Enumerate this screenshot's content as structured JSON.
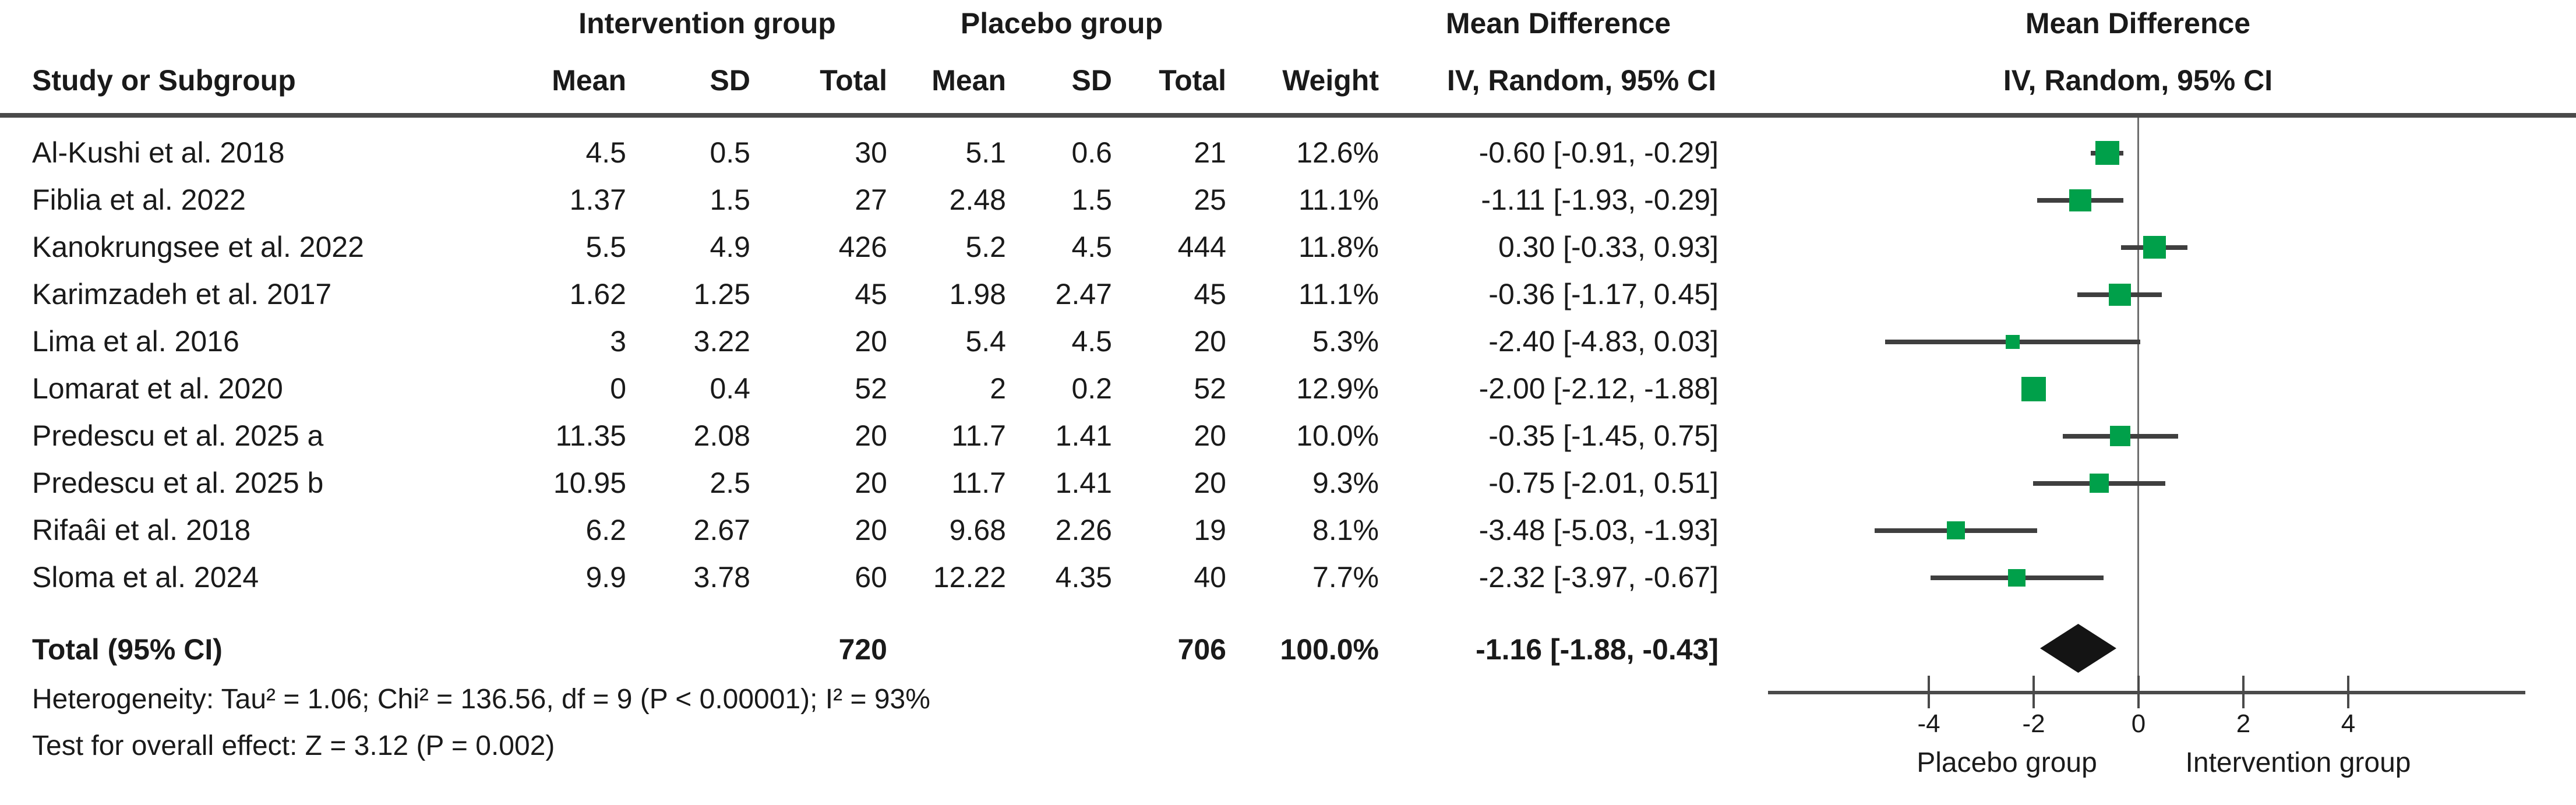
{
  "table": {
    "headers": {
      "intervention_group": "Intervention group",
      "placebo_group": "Placebo group",
      "mean_difference_left": "Mean Difference",
      "mean_difference_right": "Mean Difference",
      "study_or_subgroup": "Study or Subgroup",
      "mean1": "Mean",
      "sd1": "SD",
      "total1": "Total",
      "mean2": "Mean",
      "sd2": "SD",
      "total2": "Total",
      "weight": "Weight",
      "iv_random_left": "IV, Random, 95% CI",
      "iv_random_right": "IV, Random, 95% CI"
    },
    "rows": [
      {
        "study": "Al-Kushi et al. 2018",
        "i_mean": "4.5",
        "i_sd": "0.5",
        "i_total": "30",
        "p_mean": "5.1",
        "p_sd": "0.6",
        "p_total": "21",
        "weight": "12.6%",
        "ci": "-0.60 [-0.91, -0.29]"
      },
      {
        "study": "Fiblia et al. 2022",
        "i_mean": "1.37",
        "i_sd": "1.5",
        "i_total": "27",
        "p_mean": "2.48",
        "p_sd": "1.5",
        "p_total": "25",
        "weight": "11.1%",
        "ci": "-1.11 [-1.93, -0.29]"
      },
      {
        "study": "Kanokrungsee et al. 2022",
        "i_mean": "5.5",
        "i_sd": "4.9",
        "i_total": "426",
        "p_mean": "5.2",
        "p_sd": "4.5",
        "p_total": "444",
        "weight": "11.8%",
        "ci": "0.30 [-0.33, 0.93]"
      },
      {
        "study": "Karimzadeh et al. 2017",
        "i_mean": "1.62",
        "i_sd": "1.25",
        "i_total": "45",
        "p_mean": "1.98",
        "p_sd": "2.47",
        "p_total": "45",
        "weight": "11.1%",
        "ci": "-0.36 [-1.17, 0.45]"
      },
      {
        "study": "Lima et al. 2016",
        "i_mean": "3",
        "i_sd": "3.22",
        "i_total": "20",
        "p_mean": "5.4",
        "p_sd": "4.5",
        "p_total": "20",
        "weight": "5.3%",
        "ci": "-2.40 [-4.83, 0.03]"
      },
      {
        "study": "Lomarat et al. 2020",
        "i_mean": "0",
        "i_sd": "0.4",
        "i_total": "52",
        "p_mean": "2",
        "p_sd": "0.2",
        "p_total": "52",
        "weight": "12.9%",
        "ci": "-2.00 [-2.12, -1.88]"
      },
      {
        "study": "Predescu et al. 2025 a",
        "i_mean": "11.35",
        "i_sd": "2.08",
        "i_total": "20",
        "p_mean": "11.7",
        "p_sd": "1.41",
        "p_total": "20",
        "weight": "10.0%",
        "ci": "-0.35 [-1.45, 0.75]"
      },
      {
        "study": "Predescu et al. 2025 b",
        "i_mean": "10.95",
        "i_sd": "2.5",
        "i_total": "20",
        "p_mean": "11.7",
        "p_sd": "1.41",
        "p_total": "20",
        "weight": "9.3%",
        "ci": "-0.75 [-2.01, 0.51]"
      },
      {
        "study": "Rifaâi et al. 2018",
        "i_mean": "6.2",
        "i_sd": "2.67",
        "i_total": "20",
        "p_mean": "9.68",
        "p_sd": "2.26",
        "p_total": "19",
        "weight": "8.1%",
        "ci": "-3.48 [-5.03, -1.93]"
      },
      {
        "study": "Sloma et al. 2024",
        "i_mean": "9.9",
        "i_sd": "3.78",
        "i_total": "60",
        "p_mean": "12.22",
        "p_sd": "4.35",
        "p_total": "40",
        "weight": "7.7%",
        "ci": "-2.32 [-3.97, -0.67]"
      }
    ],
    "total_row": {
      "label": "Total (95% CI)",
      "i_total": "720",
      "p_total": "706",
      "weight": "100.0%",
      "ci": "-1.16 [-1.88, -0.43]"
    },
    "footnotes": {
      "heterogeneity": "Heterogeneity: Tau² = 1.06; Chi² = 136.56, df = 9 (P < 0.00001); I² = 93%",
      "overall_effect": "Test for overall effect: Z = 3.12 (P = 0.002)"
    }
  },
  "chart_data": {
    "type": "forest",
    "title": "Mean Difference — IV, Random, 95% CI",
    "effect_measure": "Mean Difference",
    "model": "IV, Random, 95% CI",
    "x_ticks": [
      -4,
      -2,
      0,
      2,
      4
    ],
    "xlim_drawn": [
      -7.0,
      7.4
    ],
    "x_axis_left_label": "Placebo group",
    "x_axis_right_label": "Intervention group",
    "studies": [
      {
        "name": "Al-Kushi et al. 2018",
        "md": -0.6,
        "lo": -0.91,
        "hi": -0.29,
        "weight_pct": 12.6
      },
      {
        "name": "Fiblia et al. 2022",
        "md": -1.11,
        "lo": -1.93,
        "hi": -0.29,
        "weight_pct": 11.1
      },
      {
        "name": "Kanokrungsee et al. 2022",
        "md": 0.3,
        "lo": -0.33,
        "hi": 0.93,
        "weight_pct": 11.8
      },
      {
        "name": "Karimzadeh et al. 2017",
        "md": -0.36,
        "lo": -1.17,
        "hi": 0.45,
        "weight_pct": 11.1
      },
      {
        "name": "Lima et al. 2016",
        "md": -2.4,
        "lo": -4.83,
        "hi": 0.03,
        "weight_pct": 5.3
      },
      {
        "name": "Lomarat et al. 2020",
        "md": -2.0,
        "lo": -2.12,
        "hi": -1.88,
        "weight_pct": 12.9
      },
      {
        "name": "Predescu et al. 2025 a",
        "md": -0.35,
        "lo": -1.45,
        "hi": 0.75,
        "weight_pct": 10.0
      },
      {
        "name": "Predescu et al. 2025 b",
        "md": -0.75,
        "lo": -2.01,
        "hi": 0.51,
        "weight_pct": 9.3
      },
      {
        "name": "Rifaâi et al. 2018",
        "md": -3.48,
        "lo": -5.03,
        "hi": -1.93,
        "weight_pct": 8.1
      },
      {
        "name": "Sloma et al. 2024",
        "md": -2.32,
        "lo": -3.97,
        "hi": -0.67,
        "weight_pct": 7.7
      }
    ],
    "total": {
      "label": "Total (95% CI)",
      "md": -1.16,
      "lo": -1.88,
      "hi": -0.43,
      "weight_pct": 100.0
    },
    "marker_color": "#00a04a",
    "ci_line_color": "#3f3f3f",
    "diamond_color": "#141414",
    "grid": false,
    "legend_position": "none"
  }
}
